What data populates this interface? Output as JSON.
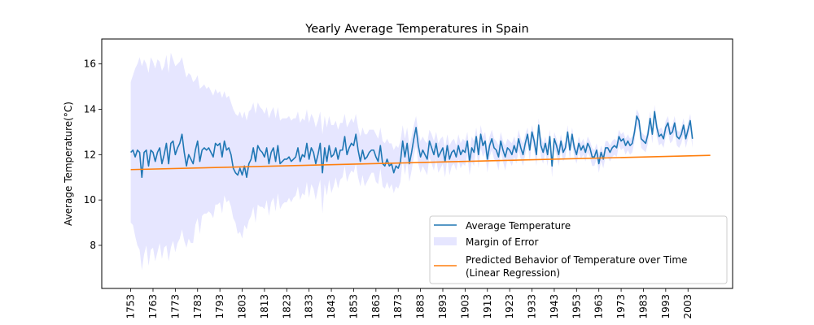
{
  "chart_data": {
    "type": "line",
    "title": "Yearly Average Temperatures in Spain",
    "xlabel": "",
    "ylabel": "Average Temperature(°C)",
    "xlim": [
      1740,
      2023
    ],
    "ylim": [
      6.1,
      17.1
    ],
    "x_ticks": [
      1753,
      1763,
      1773,
      1783,
      1793,
      1803,
      1813,
      1823,
      1833,
      1843,
      1853,
      1863,
      1873,
      1883,
      1893,
      1903,
      1913,
      1923,
      1933,
      1943,
      1953,
      1963,
      1973,
      1983,
      1993,
      2003
    ],
    "y_ticks": [
      8,
      10,
      12,
      14,
      16
    ],
    "grid": false,
    "legend_position": "lower-right",
    "colors": {
      "average": "#1f77b4",
      "margin": "#e6e6ff",
      "regression": "#ff7f0e"
    },
    "series": [
      {
        "name": "Average Temperature",
        "kind": "line",
        "x_start": 1753,
        "x_step": 1,
        "values": [
          12.1,
          12.2,
          11.9,
          12.2,
          12.1,
          11.0,
          12.1,
          12.2,
          11.5,
          12.2,
          12.1,
          11.7,
          12.1,
          12.3,
          11.6,
          12.0,
          12.5,
          11.6,
          12.5,
          12.6,
          12.0,
          12.3,
          12.5,
          12.9,
          12.1,
          11.5,
          12.0,
          11.8,
          11.6,
          12.2,
          12.6,
          11.7,
          12.2,
          12.3,
          12.2,
          12.3,
          12.1,
          11.9,
          12.5,
          12.4,
          12.5,
          11.9,
          12.6,
          12.2,
          12.3,
          12.0,
          11.4,
          11.2,
          11.1,
          11.4,
          11.1,
          11.5,
          11.0,
          11.6,
          11.8,
          12.3,
          11.7,
          12.4,
          12.2,
          12.1,
          11.9,
          12.3,
          11.6,
          12.1,
          12.3,
          11.7,
          12.4,
          11.6,
          11.7,
          11.8,
          11.8,
          11.9,
          11.7,
          11.8,
          11.9,
          12.3,
          11.7,
          12.0,
          11.9,
          12.5,
          11.8,
          12.3,
          12.1,
          11.6,
          12.0,
          12.5,
          11.2,
          12.3,
          11.7,
          12.4,
          11.9,
          12.0,
          12.3,
          11.8,
          12.2,
          12.2,
          12.8,
          12.0,
          12.3,
          12.5,
          12.4,
          12.9,
          12.2,
          11.7,
          12.2,
          11.8,
          11.9,
          12.1,
          12.2,
          12.2,
          11.9,
          11.7,
          12.4,
          11.6,
          11.5,
          11.8,
          11.5,
          11.6,
          11.2,
          11.5,
          11.4,
          11.7,
          12.6,
          11.9,
          12.5,
          11.6,
          12.1,
          12.7,
          13.2,
          12.4,
          11.9,
          12.2,
          12.0,
          11.8,
          12.6,
          12.3,
          12.0,
          12.5,
          11.9,
          12.1,
          12.3,
          11.7,
          12.4,
          11.8,
          12.1,
          12.2,
          11.9,
          12.4,
          12.0,
          12.2,
          12.1,
          12.6,
          11.7,
          12.3,
          12.1,
          12.8,
          12.0,
          12.9,
          12.4,
          12.6,
          11.8,
          12.4,
          12.7,
          12.3,
          12.2,
          11.9,
          12.6,
          12.2,
          11.9,
          12.3,
          12.2,
          12.0,
          12.4,
          12.1,
          12.7,
          12.3,
          12.0,
          12.5,
          12.9,
          12.2,
          13.0,
          12.6,
          12.0,
          13.3,
          12.4,
          12.1,
          12.5,
          12.0,
          12.8,
          11.5,
          12.7,
          12.4,
          12.0,
          12.6,
          12.1,
          12.3,
          13.0,
          12.2,
          12.9,
          12.3,
          12.0,
          12.5,
          12.2,
          12.4,
          12.1,
          12.5,
          12.3,
          11.9,
          11.9,
          12.2,
          11.6,
          12.1,
          11.8,
          12.3,
          12.3,
          12.1,
          12.3,
          12.4,
          12.3,
          12.8,
          12.6,
          12.7,
          12.4,
          12.6,
          12.4,
          12.5,
          13.0,
          13.7,
          13.5,
          12.7,
          12.6,
          12.5,
          12.9,
          13.6,
          12.9,
          13.9,
          13.2,
          12.8,
          12.9,
          12.7,
          13.2,
          13.4,
          12.9,
          13.0,
          13.4,
          12.8,
          12.7,
          12.9,
          13.3,
          12.7,
          13.1,
          13.5,
          12.7
        ]
      },
      {
        "name": "Margin of Error",
        "kind": "band",
        "x_start": 1753,
        "x_step": 1,
        "upper": [
          15.2,
          15.5,
          15.8,
          16.0,
          16.3,
          15.9,
          16.2,
          16.0,
          15.6,
          16.3,
          16.1,
          15.8,
          16.2,
          16.1,
          15.7,
          15.9,
          16.4,
          15.6,
          16.5,
          16.2,
          15.9,
          16.0,
          16.1,
          16.3,
          15.8,
          15.4,
          15.6,
          15.5,
          15.2,
          15.3,
          15.5,
          14.9,
          15.0,
          15.1,
          14.9,
          15.0,
          14.8,
          14.6,
          14.9,
          14.7,
          14.8,
          14.5,
          14.8,
          14.5,
          14.6,
          14.3,
          14.0,
          13.8,
          13.7,
          13.9,
          13.6,
          13.9,
          13.5,
          13.9,
          14.0,
          14.3,
          13.8,
          14.3,
          14.1,
          14.0,
          13.8,
          14.1,
          13.6,
          13.9,
          14.1,
          13.6,
          14.1,
          13.5,
          13.6,
          13.6,
          13.6,
          13.7,
          13.5,
          13.6,
          13.6,
          13.9,
          13.4,
          13.6,
          13.5,
          14.0,
          13.4,
          13.8,
          13.6,
          13.2,
          13.5,
          13.9,
          12.9,
          13.7,
          13.2,
          13.7,
          13.3,
          13.3,
          13.5,
          13.1,
          13.4,
          13.4,
          13.8,
          13.2,
          13.4,
          13.6,
          13.4,
          13.8,
          13.2,
          12.8,
          13.2,
          12.9,
          12.9,
          13.1,
          13.1,
          13.1,
          12.9,
          12.7,
          13.2,
          12.6,
          12.5,
          12.7,
          12.5,
          12.5,
          12.2,
          12.4,
          12.3,
          12.6,
          13.3,
          12.7,
          13.2,
          12.4,
          12.8,
          13.3,
          13.7,
          13.0,
          12.6,
          12.8,
          12.6,
          12.5,
          13.1,
          12.9,
          12.6,
          13.0,
          12.5,
          12.7,
          12.8,
          12.3,
          12.9,
          12.4,
          12.6,
          12.7,
          12.4,
          12.9,
          12.5,
          12.7,
          12.6,
          13.0,
          12.2,
          12.8,
          12.6,
          13.2,
          12.5,
          13.3,
          12.8,
          13.0,
          12.3,
          12.8,
          13.1,
          12.7,
          12.6,
          12.4,
          13.0,
          12.6,
          12.4,
          12.7,
          12.6,
          12.5,
          12.8,
          12.5,
          13.1,
          12.7,
          12.5,
          12.9,
          13.2,
          12.6,
          13.3,
          12.9,
          12.4,
          13.6,
          12.8,
          12.5,
          12.8,
          12.4,
          13.1,
          12.0,
          13.0,
          12.7,
          12.4,
          12.9,
          12.4,
          12.6,
          13.3,
          12.5,
          13.2,
          12.6,
          12.3,
          12.8,
          12.5,
          12.7,
          12.4,
          12.8,
          12.6,
          12.3,
          12.2,
          12.5,
          12.0,
          12.4,
          12.1,
          12.6,
          12.6,
          12.4,
          12.6,
          12.7,
          12.6,
          13.1,
          12.9,
          13.0,
          12.7,
          12.9,
          12.7,
          12.8,
          13.3,
          14.0,
          13.8,
          13.0,
          12.9,
          12.8,
          13.2,
          13.9,
          13.2,
          14.2,
          13.5,
          13.1,
          13.2,
          13.0,
          13.5,
          13.7,
          13.2,
          13.3,
          13.7,
          13.1,
          13.0,
          13.2,
          13.6,
          13.0,
          13.4,
          13.8,
          13.0
        ],
        "lower": [
          9.0,
          8.9,
          8.4,
          8.0,
          7.8,
          6.9,
          7.6,
          8.0,
          7.1,
          7.8,
          7.9,
          7.3,
          7.7,
          8.1,
          7.4,
          7.9,
          8.0,
          7.3,
          7.9,
          8.2,
          7.7,
          8.1,
          8.3,
          8.7,
          8.2,
          7.9,
          8.3,
          8.1,
          8.1,
          8.9,
          9.2,
          8.5,
          9.3,
          9.4,
          9.4,
          9.5,
          9.4,
          9.2,
          9.8,
          9.8,
          9.9,
          9.4,
          10.2,
          9.9,
          10.0,
          9.7,
          9.2,
          9.0,
          8.5,
          8.6,
          8.3,
          8.9,
          8.7,
          9.1,
          9.3,
          9.7,
          9.0,
          9.8,
          9.7,
          9.7,
          9.6,
          10.0,
          9.3,
          9.9,
          10.1,
          9.5,
          10.3,
          9.6,
          9.8,
          9.9,
          9.9,
          10.1,
          9.9,
          10.1,
          10.2,
          10.6,
          10.0,
          10.3,
          10.2,
          10.8,
          10.1,
          10.7,
          10.5,
          10.0,
          10.5,
          10.9,
          9.4,
          10.7,
          10.2,
          10.9,
          10.3,
          10.6,
          11.0,
          10.5,
          10.9,
          11.0,
          11.5,
          10.8,
          11.1,
          11.3,
          11.2,
          11.6,
          11.0,
          10.6,
          11.1,
          10.6,
          10.8,
          11.0,
          11.2,
          11.2,
          10.8,
          10.7,
          11.4,
          10.6,
          10.5,
          10.8,
          10.5,
          10.7,
          10.3,
          10.6,
          10.5,
          10.8,
          11.8,
          11.1,
          11.7,
          10.8,
          11.3,
          11.9,
          12.4,
          11.6,
          11.2,
          11.5,
          11.3,
          11.1,
          11.9,
          11.6,
          11.3,
          11.8,
          11.2,
          11.4,
          11.6,
          11.0,
          11.8,
          11.1,
          11.5,
          11.6,
          11.3,
          11.8,
          11.4,
          11.6,
          11.5,
          12.0,
          11.1,
          11.7,
          11.5,
          12.3,
          11.4,
          12.3,
          11.9,
          12.1,
          11.2,
          11.9,
          12.2,
          11.8,
          11.7,
          11.3,
          12.1,
          11.7,
          11.3,
          11.8,
          11.7,
          11.5,
          11.9,
          11.6,
          12.2,
          11.8,
          11.5,
          12.0,
          12.5,
          11.7,
          12.6,
          12.2,
          11.5,
          12.9,
          11.9,
          11.6,
          12.1,
          11.5,
          12.4,
          11.0,
          12.3,
          12.0,
          11.5,
          12.2,
          11.7,
          11.9,
          12.6,
          11.8,
          12.5,
          11.9,
          11.6,
          12.1,
          11.8,
          12.0,
          11.7,
          12.1,
          11.9,
          11.5,
          11.5,
          11.8,
          11.2,
          11.7,
          11.4,
          11.9,
          11.9,
          11.7,
          11.9,
          12.0,
          11.9,
          12.4,
          12.2,
          12.3,
          12.0,
          12.2,
          12.0,
          12.1,
          12.6,
          13.3,
          13.1,
          12.3,
          12.2,
          12.1,
          12.5,
          13.2,
          12.5,
          13.5,
          12.8,
          12.4,
          12.5,
          12.3,
          12.8,
          13.0,
          12.5,
          12.6,
          13.0,
          12.4,
          12.3,
          12.5,
          12.9,
          12.3,
          12.7,
          13.1,
          12.3
        ]
      },
      {
        "name": "Predicted Behavior of Temperature over Time\n(Linear Regression)",
        "kind": "regression",
        "x": [
          1753,
          2013
        ],
        "values": [
          11.34,
          11.97
        ]
      }
    ]
  }
}
